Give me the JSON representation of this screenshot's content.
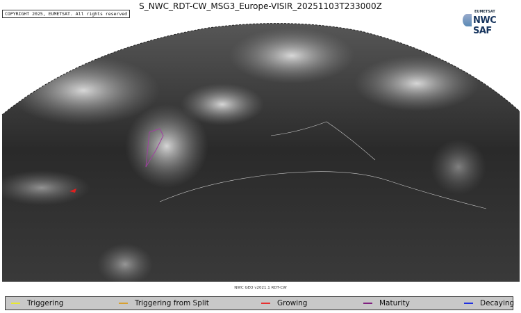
{
  "title": "S_NWC_RDT-CW_MSG3_Europe-VISIR_20251103T233000Z",
  "copyright": "COPYRIGHT 2025, EUMETSAT. All rights reserved",
  "logo": {
    "small": "EUMETSAT",
    "big": "NWC SAF"
  },
  "version": "NWC GEO v2021.1 RDT-CW",
  "legend": [
    {
      "label": "Triggering",
      "color": "#e8e830"
    },
    {
      "label": "Triggering from Split",
      "color": "#d8a030"
    },
    {
      "label": "Growing",
      "color": "#e83030"
    },
    {
      "label": "Maturity",
      "color": "#802080"
    },
    {
      "label": "Decaying",
      "color": "#2030e0"
    }
  ]
}
